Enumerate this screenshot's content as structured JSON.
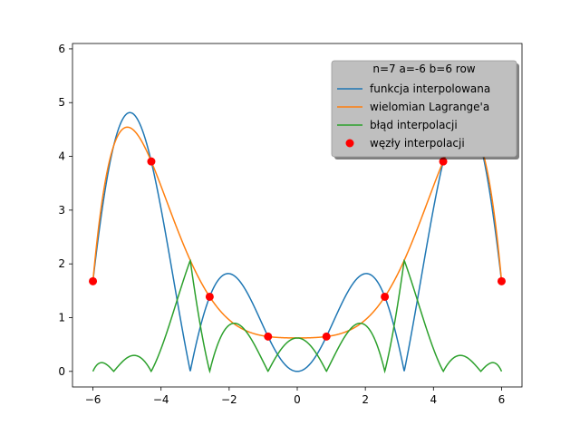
{
  "chart_data": {
    "type": "line",
    "title": "",
    "xlabel": "",
    "ylabel": "",
    "xlim": [
      -6.6,
      6.6
    ],
    "ylim": [
      -0.29,
      6.1
    ],
    "xticks": [
      -6,
      -4,
      -2,
      0,
      2,
      4,
      6
    ],
    "xtick_labels": [
      "−6",
      "−4",
      "−2",
      "0",
      "2",
      "4",
      "6"
    ],
    "yticks": [
      0,
      1,
      2,
      3,
      4,
      5,
      6
    ],
    "ytick_labels": [
      "0",
      "1",
      "2",
      "3",
      "4",
      "5",
      "6"
    ],
    "grid": false,
    "legend": {
      "placement": "top-right",
      "title": "n=7 a=-6 b=6 row",
      "entries": [
        "funkcja interpolowana",
        "wielomian Lagrange'a",
        "błąd interpolacji",
        "węzły interpolacji"
      ]
    },
    "colors": {
      "funkcja": "#1f77b4",
      "lagrange": "#ff7f0e",
      "blad": "#2ca02c",
      "wezly": "#ff0000"
    },
    "function_expr": "|x|*|sin(x)|",
    "nodes": {
      "x": [
        -6.0,
        -4.2857,
        -2.5714,
        -0.8571,
        0.8571,
        2.5714,
        4.2857,
        6.0
      ],
      "y": [
        1.6765,
        3.9053,
        1.3881,
        0.6478,
        0.6478,
        1.3881,
        3.9053,
        1.6765
      ]
    }
  }
}
